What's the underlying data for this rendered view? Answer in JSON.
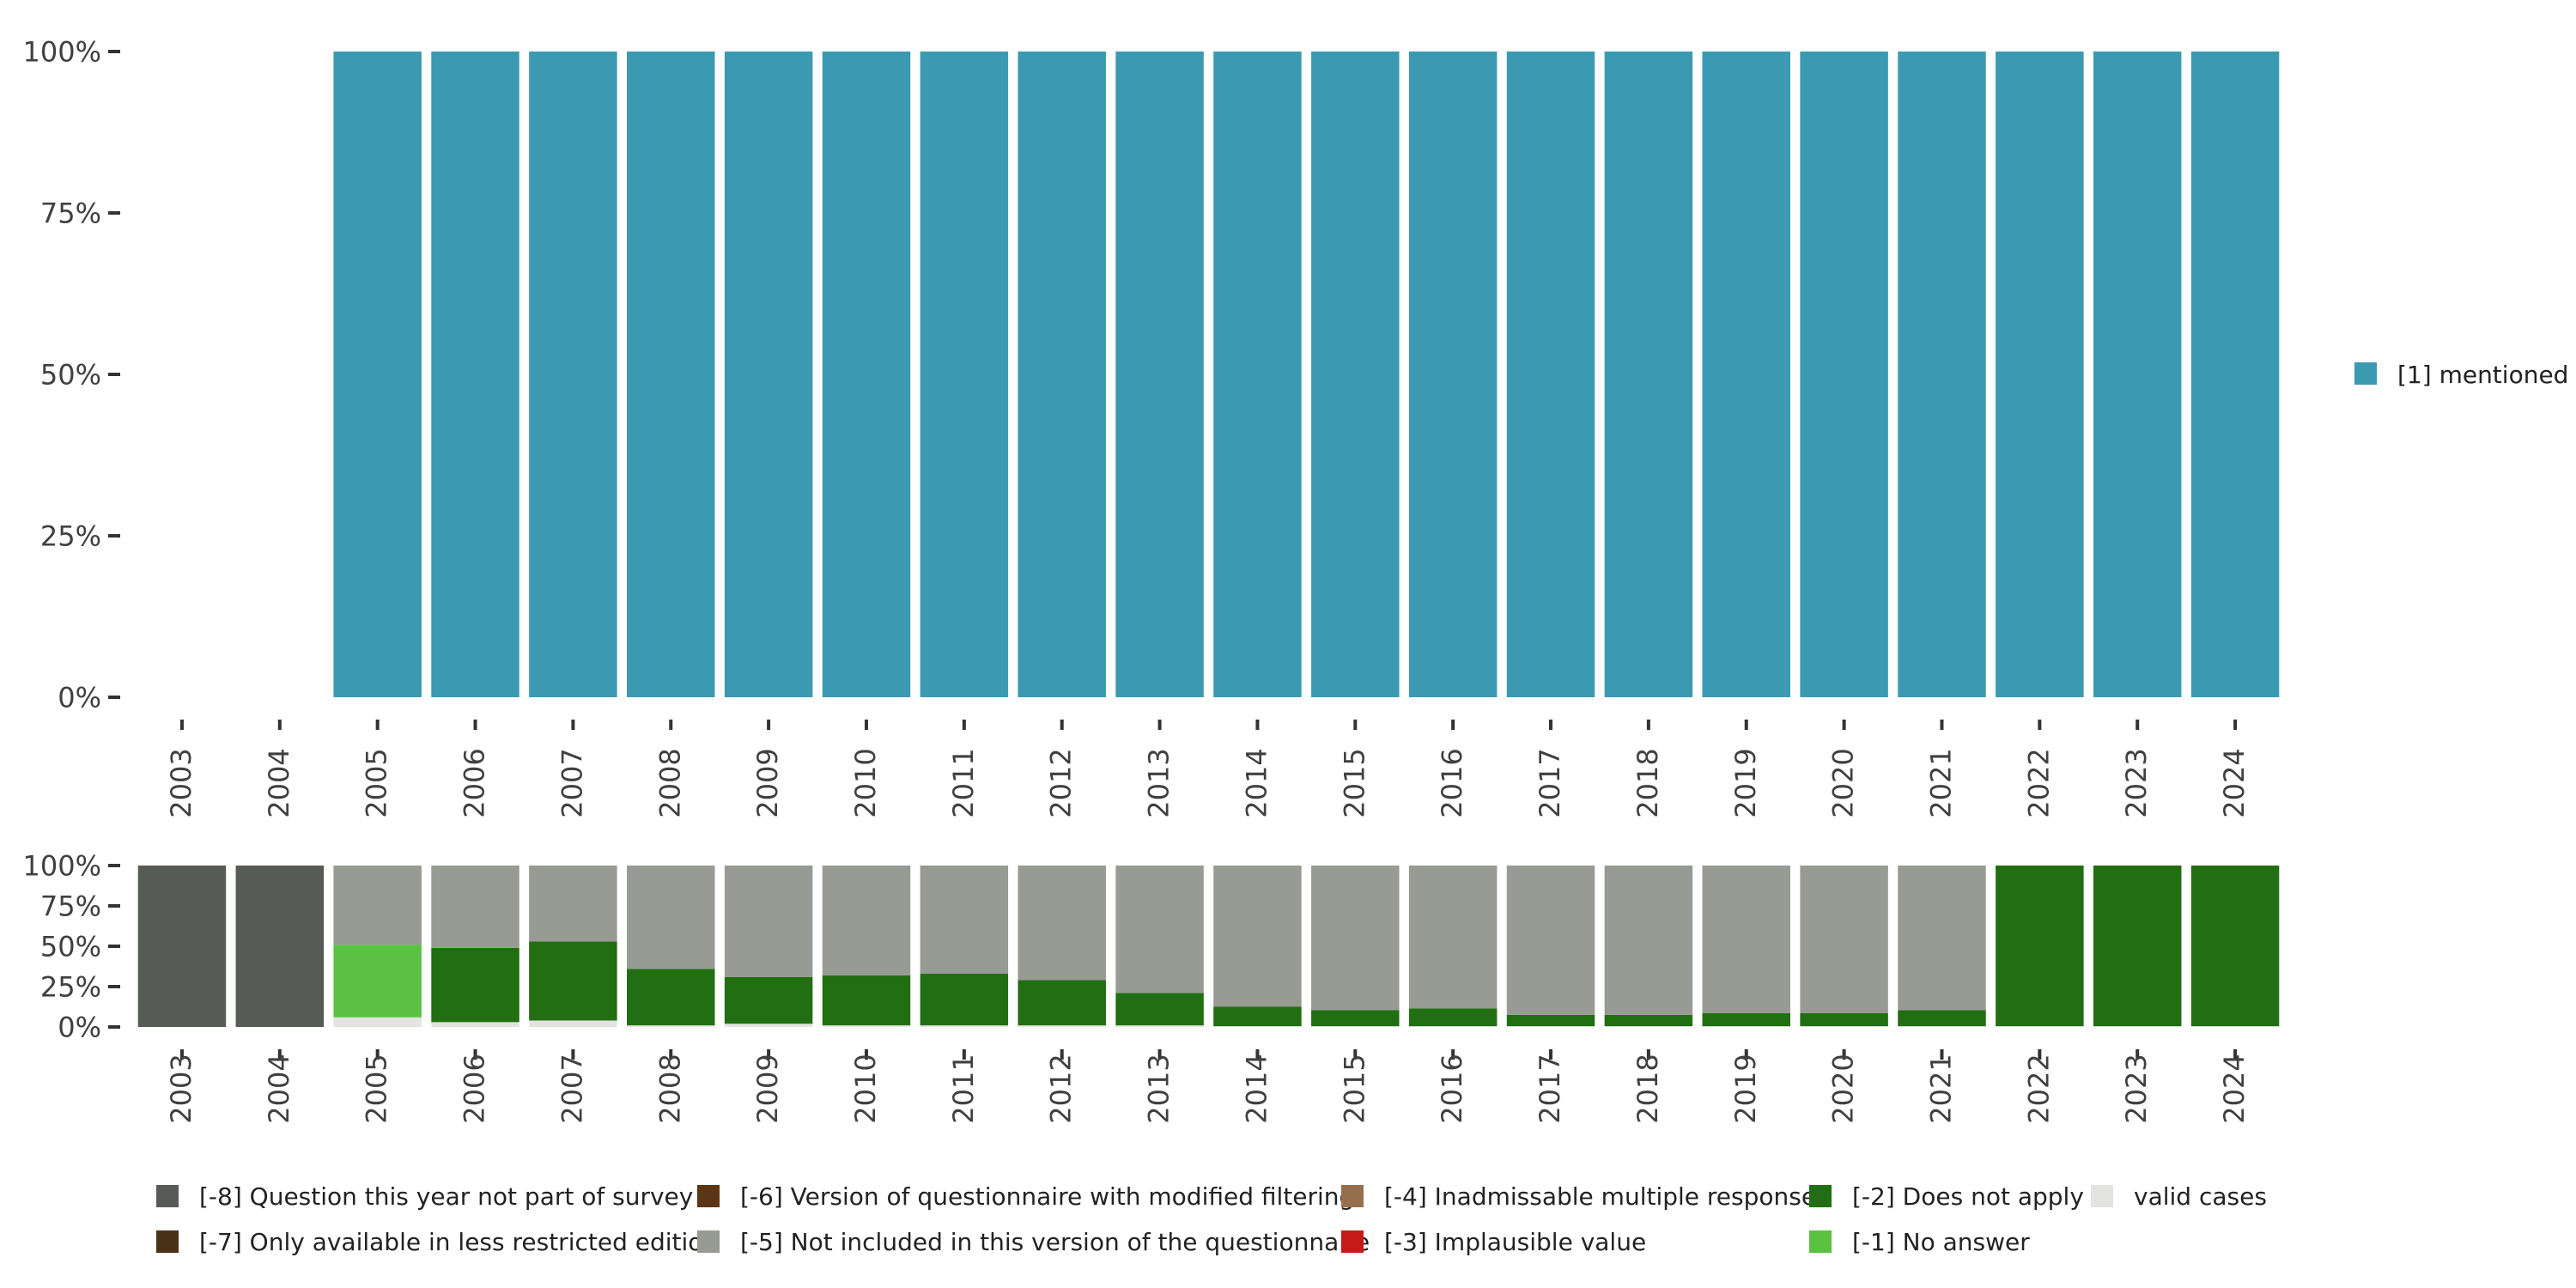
{
  "colors": {
    "mentioned": "#3b9ab2",
    "valid": "#e3e3e0",
    "no_answer": "#5bc143",
    "does_not_apply": "#226e12",
    "implausible": "#c61a1a",
    "inadmissable": "#94704f",
    "not_included": "#979b93",
    "version_modified": "#5a3616",
    "less_restricted": "#4a3218",
    "not_part": "#565c55",
    "tick": "#333333",
    "text": "#404040"
  },
  "chart_data": [
    {
      "type": "bar",
      "stacked": true,
      "categories": [
        "2003",
        "2004",
        "2005",
        "2006",
        "2007",
        "2008",
        "2009",
        "2010",
        "2011",
        "2012",
        "2013",
        "2014",
        "2015",
        "2016",
        "2017",
        "2018",
        "2019",
        "2020",
        "2021",
        "2022",
        "2023",
        "2024"
      ],
      "series": [
        {
          "name": "[1] mentioned",
          "color_key": "mentioned",
          "values": [
            0,
            0,
            100,
            100,
            100,
            100,
            100,
            100,
            100,
            100,
            100,
            100,
            100,
            100,
            100,
            100,
            100,
            100,
            100,
            100,
            100,
            100
          ]
        }
      ],
      "ylim": [
        0,
        100
      ],
      "yticks": [
        "0%",
        "25%",
        "50%",
        "75%",
        "100%"
      ],
      "legend": [
        {
          "label": "[1] mentioned",
          "color_key": "mentioned"
        }
      ],
      "legend_position": "right"
    },
    {
      "type": "bar",
      "stacked": true,
      "categories": [
        "2003",
        "2004",
        "2005",
        "2006",
        "2007",
        "2008",
        "2009",
        "2010",
        "2011",
        "2012",
        "2013",
        "2014",
        "2015",
        "2016",
        "2017",
        "2018",
        "2019",
        "2020",
        "2021",
        "2022",
        "2023",
        "2024"
      ],
      "series": [
        {
          "name": "valid cases",
          "color_key": "valid",
          "values": [
            0,
            0,
            6,
            3,
            4,
            1,
            2,
            1,
            1,
            1,
            1,
            0.5,
            0.5,
            0.5,
            0.5,
            0.5,
            0.5,
            0.5,
            0.5,
            0.5,
            0.5,
            0.5
          ]
        },
        {
          "name": "[-1] No answer",
          "color_key": "no_answer",
          "values": [
            0,
            0,
            45,
            0,
            0,
            0,
            0,
            0,
            0,
            0,
            0,
            0,
            0,
            0,
            0,
            0,
            0,
            0,
            0,
            0,
            0,
            0
          ]
        },
        {
          "name": "[-2] Does not apply",
          "color_key": "does_not_apply",
          "values": [
            0,
            0,
            0,
            46,
            49,
            35,
            29,
            31,
            32,
            28,
            20,
            12,
            10,
            11,
            7,
            7,
            8,
            8,
            10,
            99.5,
            99.5,
            99.5
          ]
        },
        {
          "name": "[-5] Not included in this version of the questionnaire",
          "color_key": "not_included",
          "values": [
            0,
            0,
            49,
            51,
            47,
            64,
            69,
            68,
            67,
            71,
            79,
            87.5,
            89.5,
            88.5,
            92.5,
            92.5,
            91.5,
            91.5,
            89.5,
            0,
            0,
            0
          ]
        },
        {
          "name": "[-8] Question this year not part of survey",
          "color_key": "not_part",
          "values": [
            100,
            100,
            0,
            0,
            0,
            0,
            0,
            0,
            0,
            0,
            0,
            0,
            0,
            0,
            0,
            0,
            0,
            0,
            0,
            0,
            0,
            0
          ]
        }
      ],
      "ylim": [
        0,
        100
      ],
      "yticks": [
        "0%",
        "25%",
        "50%",
        "75%",
        "100%"
      ],
      "legend": [
        {
          "label": "[-8] Question this year not part of survey",
          "color_key": "not_part"
        },
        {
          "label": "[-7] Only available in less restricted edition",
          "color_key": "less_restricted"
        },
        {
          "label": "[-6] Version of questionnaire with modified filtering",
          "color_key": "version_modified"
        },
        {
          "label": "[-5] Not included in this version of the questionnaire",
          "color_key": "not_included"
        },
        {
          "label": "[-4] Inadmissable multiple response",
          "color_key": "inadmissable"
        },
        {
          "label": "[-3] Implausible value",
          "color_key": "implausible"
        },
        {
          "label": "[-2] Does not apply",
          "color_key": "does_not_apply"
        },
        {
          "label": "[-1] No answer",
          "color_key": "no_answer"
        },
        {
          "label": "valid cases",
          "color_key": "valid"
        }
      ],
      "legend_position": "bottom"
    }
  ]
}
